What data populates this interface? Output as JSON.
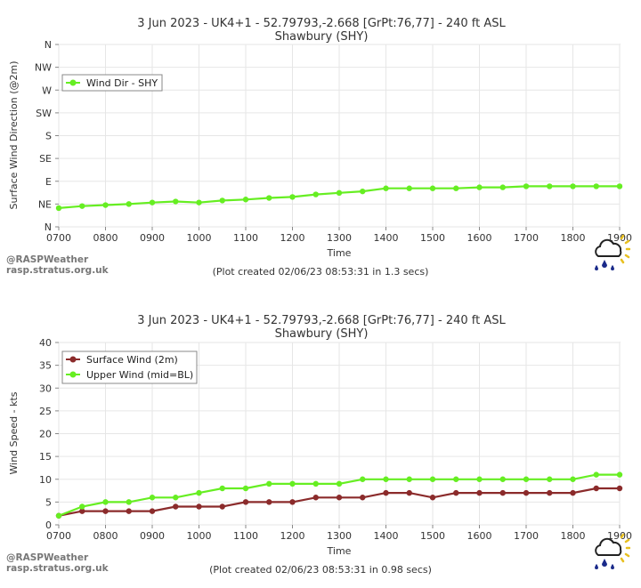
{
  "charts": [
    {
      "title_line1": "3 Jun 2023 - UK4+1 - 52.79793,-2.668 [GrPt:76,77]  - 240 ft ASL",
      "title_line2": "Shawbury (SHY)",
      "credit": "(Plot created 02/06/23 08:53:31 in 1.3 secs)"
    },
    {
      "title_line1": "3 Jun 2023 - UK4+1 - 52.79793,-2.668 [GrPt:76,77]  - 240 ft ASL",
      "title_line2": "Shawbury (SHY)",
      "credit": "(Plot created 02/06/23 08:53:31 in 0.98 secs)"
    }
  ],
  "watermark": {
    "line1": "@RASPWeather",
    "line2": "rasp.stratus.org.uk"
  },
  "logo_icon": "rain-cloud-sun-icon",
  "colors": {
    "green": "#66ee22",
    "maroon": "#8b2b2b",
    "grid": "#e6e6e6",
    "frame": "#aaaaaa"
  },
  "chart_data": [
    {
      "type": "line",
      "xlabel": "Time",
      "ylabel": "Surface Wind Direction (@2m)",
      "x_ticks": [
        "0700",
        "0800",
        "0900",
        "1000",
        "1100",
        "1200",
        "1300",
        "1400",
        "1500",
        "1600",
        "1700",
        "1800",
        "1900"
      ],
      "y_ticks": [
        "N",
        "NE",
        "E",
        "SE",
        "S",
        "SW",
        "W",
        "NW",
        "N"
      ],
      "y_tick_degrees": [
        0,
        45,
        90,
        135,
        180,
        225,
        270,
        315,
        360
      ],
      "ylim": [
        0,
        360
      ],
      "x": [
        "0700",
        "0730",
        "0800",
        "0830",
        "0900",
        "0930",
        "1000",
        "1030",
        "1100",
        "1130",
        "1200",
        "1230",
        "1300",
        "1330",
        "1400",
        "1430",
        "1500",
        "1530",
        "1600",
        "1630",
        "1700",
        "1730",
        "1800",
        "1830",
        "1900"
      ],
      "grid": true,
      "legend_position": "top-left",
      "series": [
        {
          "name": "Wind Dir - SHY",
          "color": "#66ee22",
          "values": [
            37,
            41,
            43,
            45,
            48,
            50,
            48,
            52,
            54,
            57,
            59,
            64,
            67,
            70,
            76,
            76,
            76,
            76,
            78,
            78,
            80,
            80,
            80,
            80,
            80
          ]
        }
      ]
    },
    {
      "type": "line",
      "xlabel": "Time",
      "ylabel": "Wind Speed - kts",
      "x_ticks": [
        "0700",
        "0800",
        "0900",
        "1000",
        "1100",
        "1200",
        "1300",
        "1400",
        "1500",
        "1600",
        "1700",
        "1800",
        "1900"
      ],
      "y_ticks": [
        "0",
        "5",
        "10",
        "15",
        "20",
        "25",
        "30",
        "35",
        "40"
      ],
      "ylim": [
        0,
        40
      ],
      "x": [
        "0700",
        "0730",
        "0800",
        "0830",
        "0900",
        "0930",
        "1000",
        "1030",
        "1100",
        "1130",
        "1200",
        "1230",
        "1300",
        "1330",
        "1400",
        "1430",
        "1500",
        "1530",
        "1600",
        "1630",
        "1700",
        "1730",
        "1800",
        "1830",
        "1900"
      ],
      "grid": true,
      "legend_position": "top-left",
      "series": [
        {
          "name": "Surface Wind (2m)",
          "color": "#8b2b2b",
          "values": [
            2,
            3,
            3,
            3,
            3,
            4,
            4,
            4,
            5,
            5,
            5,
            6,
            6,
            6,
            7,
            7,
            6,
            7,
            7,
            7,
            7,
            7,
            7,
            8,
            8
          ]
        },
        {
          "name": "Upper Wind (mid=BL)",
          "color": "#66ee22",
          "values": [
            2,
            4,
            5,
            5,
            6,
            6,
            7,
            8,
            8,
            9,
            9,
            9,
            9,
            10,
            10,
            10,
            10,
            10,
            10,
            10,
            10,
            10,
            10,
            11,
            11
          ]
        }
      ]
    }
  ]
}
